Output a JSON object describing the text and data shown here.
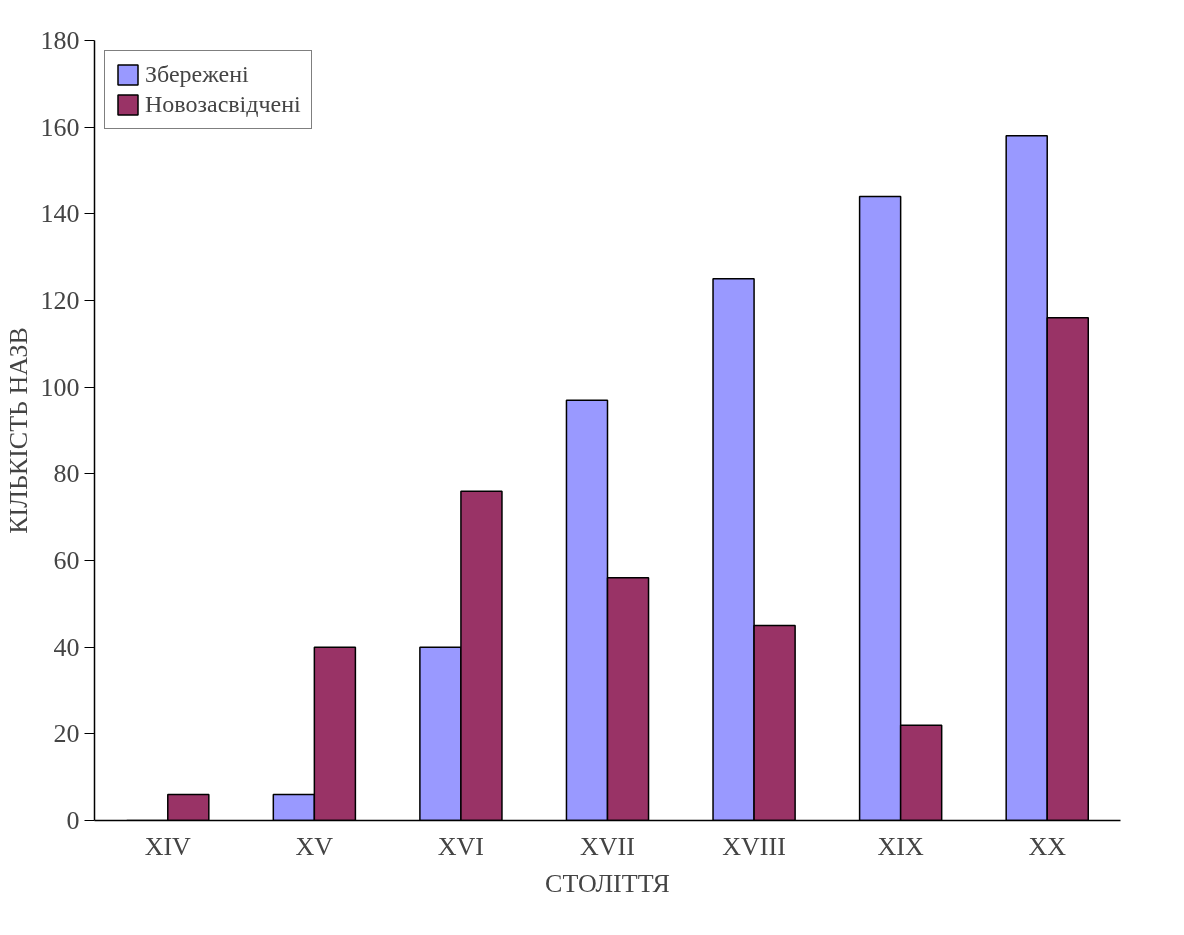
{
  "chart_data": {
    "type": "bar",
    "xlabel": "СТОЛІТТЯ",
    "ylabel": "КІЛЬКІСТЬ НАЗВ",
    "categories": [
      "XIV",
      "XV",
      "XVI",
      "XVII",
      "XVIII",
      "XIX",
      "XX"
    ],
    "series": [
      {
        "name": "Збережені",
        "color": "#9999ff",
        "values": [
          0,
          6,
          40,
          97,
          125,
          144,
          158
        ]
      },
      {
        "name": "Новозасвідчені",
        "color": "#993366",
        "values": [
          6,
          40,
          76,
          56,
          45,
          22,
          116
        ]
      }
    ],
    "ylim": [
      0,
      180
    ],
    "yticks": [
      0,
      20,
      40,
      60,
      80,
      100,
      120,
      140,
      160,
      180
    ],
    "grid": false,
    "legend": "top left"
  }
}
